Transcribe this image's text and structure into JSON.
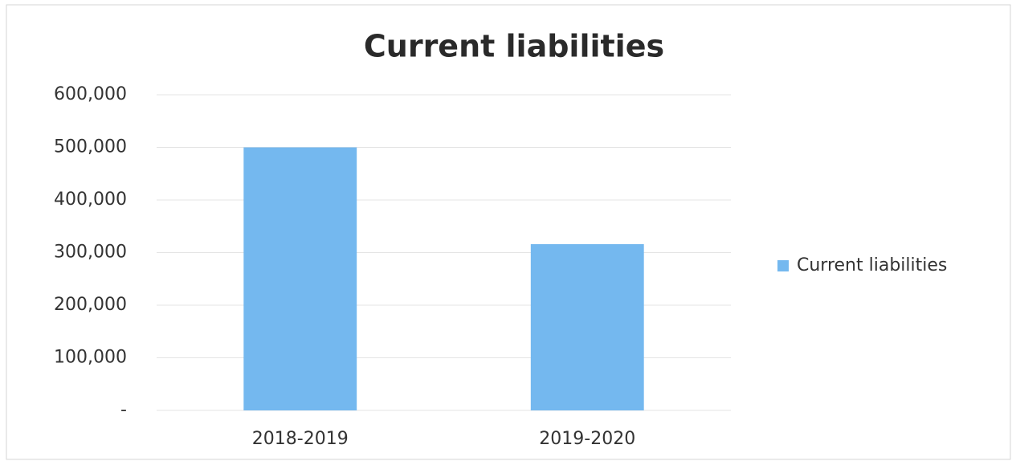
{
  "chart_data": {
    "type": "bar",
    "title": "Current liabilities",
    "categories": [
      "2018-2019",
      "2019-2020"
    ],
    "series": [
      {
        "name": "Current liabilities",
        "color": "#74b8ef",
        "values": [
          500000,
          316000
        ]
      }
    ],
    "ylim": [
      0,
      600000
    ],
    "yticks": [
      {
        "value": 0,
        "label": "-"
      },
      {
        "value": 100000,
        "label": "100,000"
      },
      {
        "value": 200000,
        "label": "200,000"
      },
      {
        "value": 300000,
        "label": "300,000"
      },
      {
        "value": 400000,
        "label": "400,000"
      },
      {
        "value": 500000,
        "label": "500,000"
      },
      {
        "value": 600000,
        "label": "600,000"
      }
    ],
    "grid": true,
    "legend": "right"
  }
}
